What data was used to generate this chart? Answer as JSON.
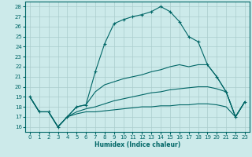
{
  "xlabel": "Humidex (Indice chaleur)",
  "bg_color": "#cceaea",
  "grid_color": "#aacccc",
  "line_color": "#006666",
  "xlim": [
    -0.5,
    23.5
  ],
  "ylim": [
    15.5,
    28.5
  ],
  "xticks": [
    0,
    1,
    2,
    3,
    4,
    5,
    6,
    7,
    8,
    9,
    10,
    11,
    12,
    13,
    14,
    15,
    16,
    17,
    18,
    19,
    20,
    21,
    22,
    23
  ],
  "yticks": [
    16,
    17,
    18,
    19,
    20,
    21,
    22,
    23,
    24,
    25,
    26,
    27,
    28
  ],
  "series": [
    [
      19.0,
      17.5,
      17.5,
      16.0,
      17.0,
      18.0,
      18.2,
      21.5,
      24.3,
      26.3,
      26.7,
      27.0,
      27.2,
      27.5,
      28.0,
      27.5,
      26.5,
      25.0,
      24.5,
      22.2,
      21.0,
      19.5,
      17.0,
      18.5
    ],
    [
      19.0,
      17.5,
      17.5,
      16.0,
      17.0,
      18.0,
      18.2,
      19.5,
      20.2,
      20.5,
      20.8,
      21.0,
      21.2,
      21.5,
      21.7,
      22.0,
      22.2,
      22.0,
      22.2,
      22.2,
      21.0,
      19.5,
      17.0,
      18.5
    ],
    [
      19.0,
      17.5,
      17.5,
      16.0,
      17.0,
      17.5,
      17.8,
      18.0,
      18.3,
      18.6,
      18.8,
      19.0,
      19.2,
      19.4,
      19.5,
      19.7,
      19.8,
      19.9,
      20.0,
      20.0,
      19.8,
      19.5,
      17.0,
      18.5
    ],
    [
      19.0,
      17.5,
      17.5,
      16.0,
      17.0,
      17.3,
      17.5,
      17.5,
      17.6,
      17.7,
      17.8,
      17.9,
      18.0,
      18.0,
      18.1,
      18.1,
      18.2,
      18.2,
      18.3,
      18.3,
      18.2,
      18.0,
      17.0,
      18.5
    ]
  ],
  "has_markers": [
    true,
    false,
    false,
    false
  ],
  "xlabel_fontsize": 5.5,
  "tick_fontsize": 5.0
}
